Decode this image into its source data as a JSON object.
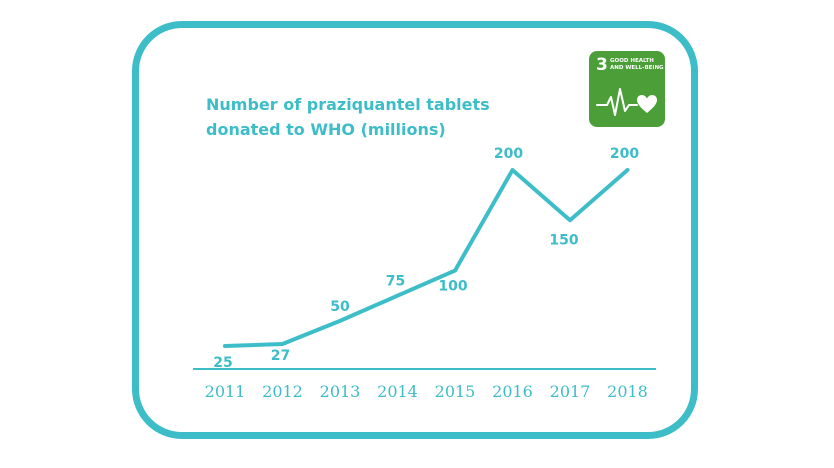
{
  "chart_data": {
    "type": "line",
    "title_lines": [
      "Number of praziquantel tablets",
      "donated to WHO (millions)"
    ],
    "categories": [
      "2011",
      "2012",
      "2013",
      "2014",
      "2015",
      "2016",
      "2017",
      "2018"
    ],
    "values": [
      25,
      27,
      50,
      75,
      100,
      200,
      150,
      200
    ],
    "data_labels": [
      "25",
      "27",
      "50",
      "75",
      "100",
      "200",
      "150",
      "200"
    ],
    "xlabel": "",
    "ylabel": "",
    "ylim": [
      0,
      220
    ],
    "grid": false,
    "legend": "none"
  },
  "badge": {
    "number": "3",
    "text_lines": [
      "GOOD HEALTH",
      "AND WELL-BEING"
    ],
    "icon": "heartbeat-heart-icon"
  },
  "colors": {
    "accent": "#3dbdc8",
    "badge_green": "#4c9f38",
    "badge_text": "#ffffff"
  }
}
